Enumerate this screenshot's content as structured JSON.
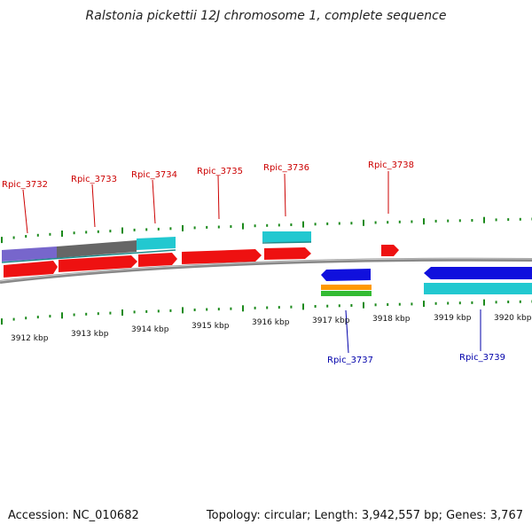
{
  "title": "Ralstonia pickettii 12J chromosome 1, complete sequence",
  "footer": {
    "accession": "Accession: NC_010682",
    "topology": "Topology: circular; Length: 3,942,557 bp; Genes: 3,767"
  },
  "colors": {
    "forward_label": "#cc0000",
    "reverse_label": "#0000aa",
    "tick": "#1c8a1c",
    "backbone": "#888888",
    "cds_red": "#ee1111",
    "cds_blue": "#1010dd",
    "cyan": "#22c8d0",
    "purple": "#7766cc",
    "gray": "#666666",
    "orange": "#ff9900",
    "green": "#33bb33"
  },
  "kbp_labels": [
    "3912 kbp",
    "3913 kbp",
    "3914 kbp",
    "3915 kbp",
    "3916 kbp",
    "3917 kbp",
    "3918 kbp",
    "3919 kbp",
    "3920 kbp"
  ],
  "forward_genes": [
    {
      "label": "Rpic_3732"
    },
    {
      "label": "Rpic_3733"
    },
    {
      "label": "Rpic_3734"
    },
    {
      "label": "Rpic_3735"
    },
    {
      "label": "Rpic_3736"
    },
    {
      "label": "Rpic_3738"
    }
  ],
  "reverse_genes": [
    {
      "label": "Rpic_3737"
    },
    {
      "label": "Rpic_3739"
    }
  ]
}
